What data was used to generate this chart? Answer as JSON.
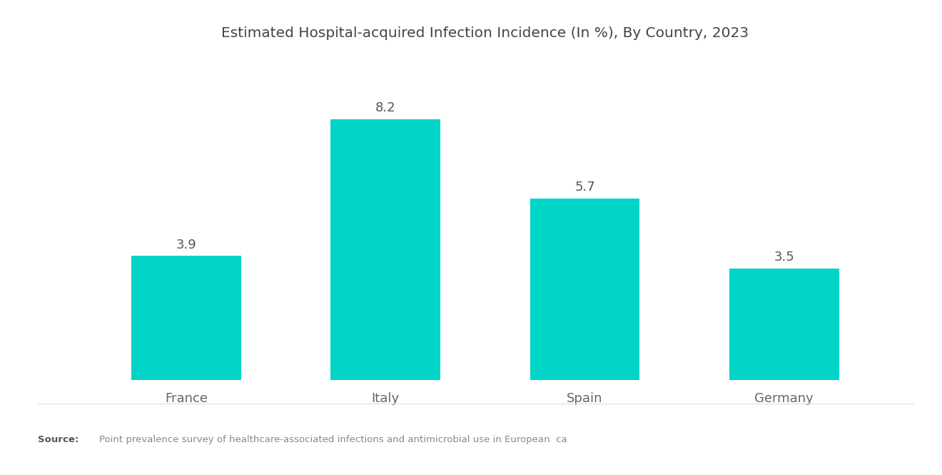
{
  "title": "Estimated Hospital-acquired Infection Incidence (In %), By Country, 2023",
  "categories": [
    "France",
    "Italy",
    "Spain",
    "Germany"
  ],
  "values": [
    3.9,
    8.2,
    5.7,
    3.5
  ],
  "bar_color": "#00D5C8",
  "background_color": "#FFFFFF",
  "title_fontsize": 14.5,
  "label_fontsize": 13,
  "value_fontsize": 13,
  "ylim": [
    0,
    10
  ],
  "bar_width": 0.55
}
